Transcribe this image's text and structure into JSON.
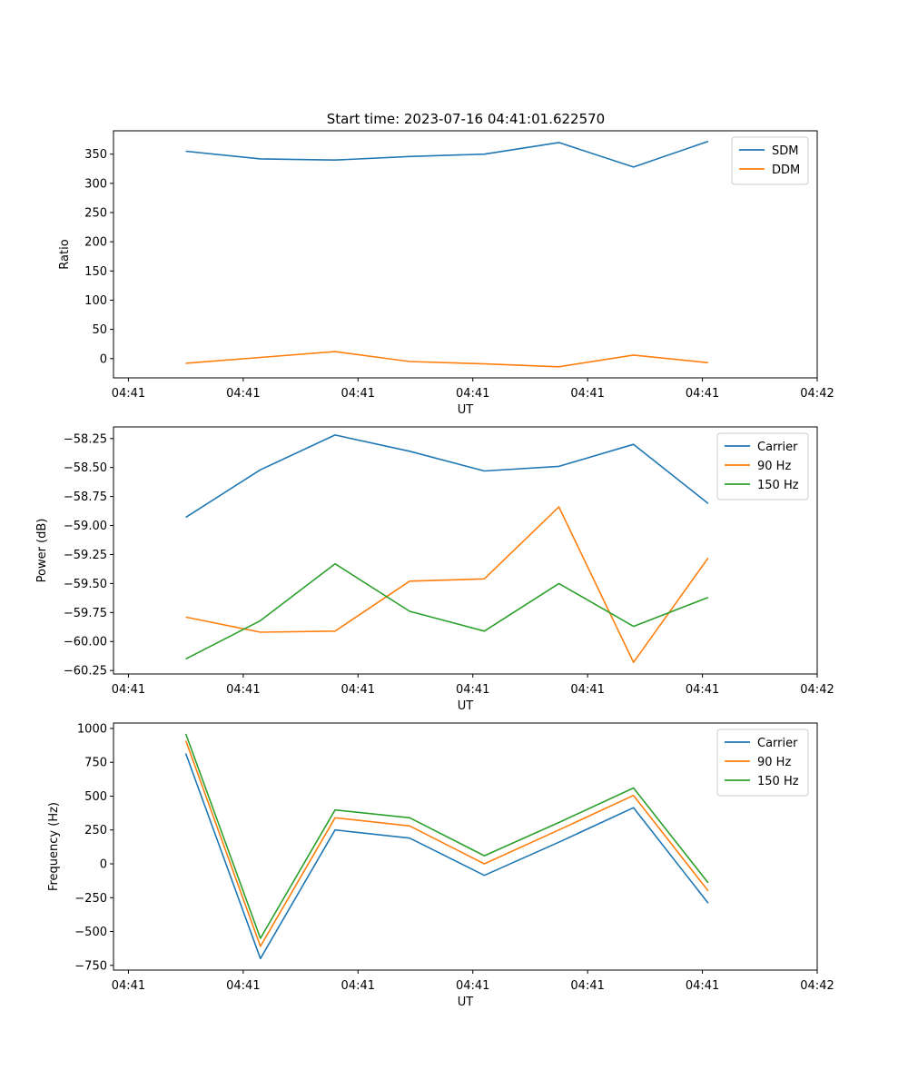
{
  "figure_title": "Start time: 2023-07-16 04:41:01.622570",
  "chart_data": [
    {
      "type": "line",
      "xlabel": "UT",
      "ylabel": "Ratio",
      "x_tick_labels": [
        "04:41",
        "04:41",
        "04:41",
        "04:41",
        "04:41",
        "04:41",
        "04:42"
      ],
      "xlim": [
        -0.13,
        6.0
      ],
      "x": [
        0.5,
        1.15,
        1.8,
        2.45,
        3.1,
        3.75,
        4.4,
        5.05
      ],
      "ylim": [
        -33,
        390
      ],
      "y_ticks": [
        0,
        50,
        100,
        150,
        200,
        250,
        300,
        350
      ],
      "y_tick_labels": [
        "0",
        "50",
        "100",
        "150",
        "200",
        "250",
        "300",
        "350"
      ],
      "legend_position": "top-right",
      "series": [
        {
          "name": "SDM",
          "color": "#1f77b4",
          "values": [
            355,
            342,
            340,
            346,
            350,
            370,
            328,
            372
          ]
        },
        {
          "name": "DDM",
          "color": "#ff7f0e",
          "values": [
            -8,
            2,
            12,
            -5,
            -9,
            -14,
            6,
            -7
          ]
        }
      ]
    },
    {
      "type": "line",
      "xlabel": "UT",
      "ylabel": "Power (dB)",
      "x_tick_labels": [
        "04:41",
        "04:41",
        "04:41",
        "04:41",
        "04:41",
        "04:41",
        "04:42"
      ],
      "xlim": [
        -0.13,
        6.0
      ],
      "x": [
        0.5,
        1.15,
        1.8,
        2.45,
        3.1,
        3.75,
        4.4,
        5.05
      ],
      "ylim": [
        -60.28,
        -58.15
      ],
      "y_ticks": [
        -60.25,
        -60.0,
        -59.75,
        -59.5,
        -59.25,
        -59.0,
        -58.75,
        -58.5,
        -58.25
      ],
      "y_tick_labels": [
        "−60.25",
        "−60.00",
        "−59.75",
        "−59.50",
        "−59.25",
        "−59.00",
        "−58.75",
        "−58.50",
        "−58.25"
      ],
      "legend_position": "top-right",
      "series": [
        {
          "name": "Carrier",
          "color": "#1f77b4",
          "values": [
            -58.93,
            -58.52,
            -58.22,
            -58.36,
            -58.53,
            -58.49,
            -58.3,
            -58.81
          ]
        },
        {
          "name": "90 Hz",
          "color": "#ff7f0e",
          "values": [
            -59.79,
            -59.92,
            -59.91,
            -59.48,
            -59.46,
            -58.84,
            -60.18,
            -59.28
          ]
        },
        {
          "name": "150 Hz",
          "color": "#2ca02c",
          "values": [
            -60.15,
            -59.82,
            -59.33,
            -59.74,
            -59.91,
            -59.5,
            -59.87,
            -59.62
          ]
        }
      ]
    },
    {
      "type": "line",
      "xlabel": "UT",
      "ylabel": "Frequency (Hz)",
      "x_tick_labels": [
        "04:41",
        "04:41",
        "04:41",
        "04:41",
        "04:41",
        "04:41",
        "04:42"
      ],
      "xlim": [
        -0.13,
        6.0
      ],
      "x": [
        0.5,
        1.15,
        1.8,
        2.45,
        3.1,
        3.75,
        4.4,
        5.05
      ],
      "ylim": [
        -785,
        1040
      ],
      "y_ticks": [
        -750,
        -500,
        -250,
        0,
        250,
        500,
        750,
        1000
      ],
      "y_tick_labels": [
        "−750",
        "−500",
        "−250",
        "0",
        "250",
        "500",
        "750",
        "1000"
      ],
      "legend_position": "top-right",
      "series": [
        {
          "name": "Carrier",
          "color": "#1f77b4",
          "values": [
            815,
            -700,
            250,
            190,
            -85,
            160,
            415,
            -290
          ]
        },
        {
          "name": "90 Hz",
          "color": "#ff7f0e",
          "values": [
            910,
            -610,
            340,
            280,
            0,
            250,
            505,
            -200
          ]
        },
        {
          "name": "150 Hz",
          "color": "#2ca02c",
          "values": [
            960,
            -550,
            398,
            340,
            60,
            305,
            560,
            -140
          ]
        }
      ]
    }
  ]
}
